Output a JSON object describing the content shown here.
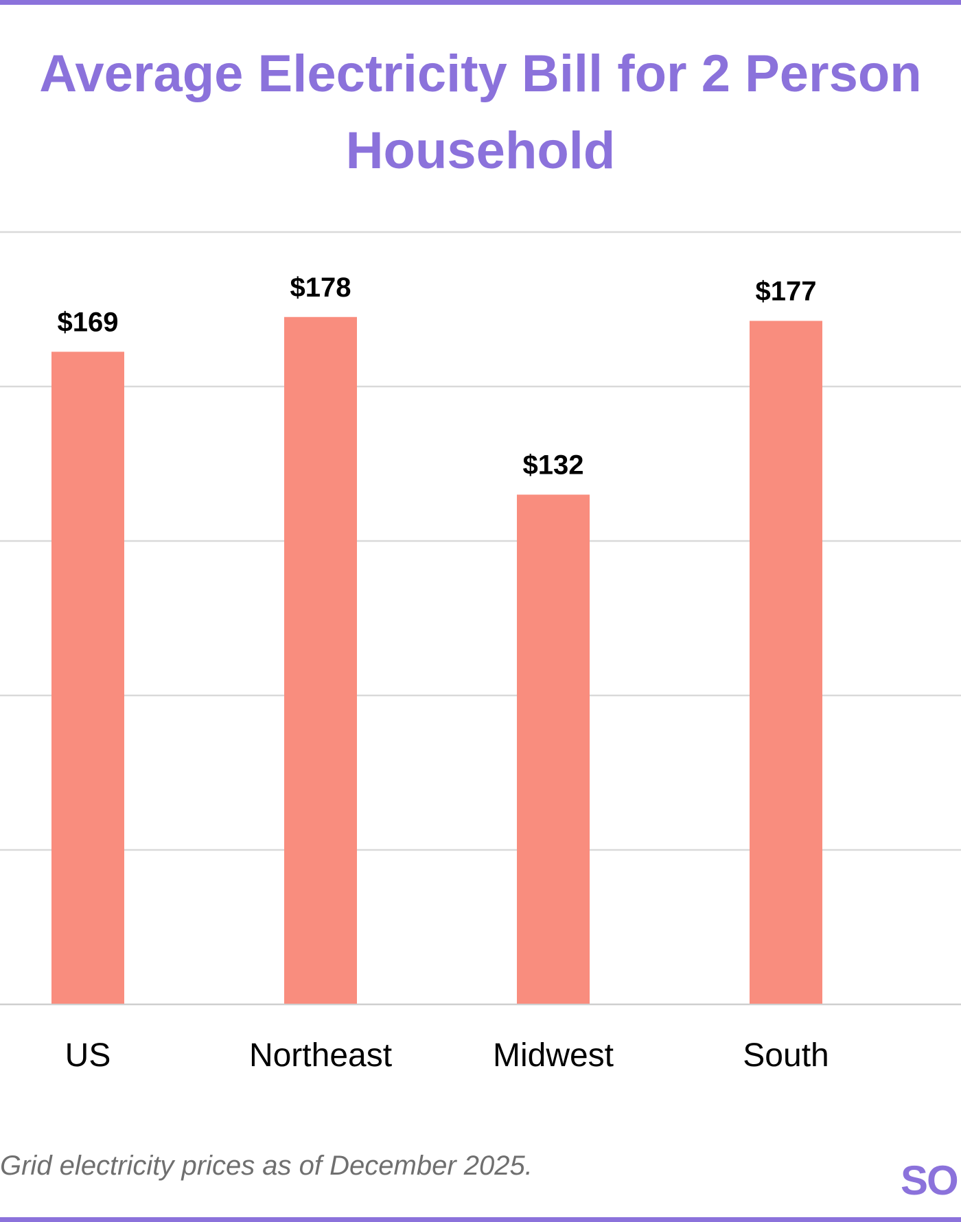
{
  "title": {
    "line1": "Average Electricity Bill for 2 Person",
    "line2": "Household"
  },
  "footnote": "Grid electricity prices as of December 2025.",
  "logo_text": "SO",
  "colors": {
    "accent": "#8b72db",
    "bar": "#f98d7e",
    "grid": "#d9d9d9",
    "footnote": "#6f6f6f"
  },
  "chart_data": {
    "type": "bar",
    "title": "Average Electricity Bill for 2 Person Household",
    "categories": [
      "US",
      "Northeast",
      "Midwest",
      "South"
    ],
    "values": [
      169,
      178,
      132,
      177
    ],
    "value_labels": [
      "$169",
      "$178",
      "$132",
      "$177"
    ],
    "ylim": [
      0,
      200
    ],
    "grid": true,
    "xlabel": "",
    "ylabel": ""
  }
}
